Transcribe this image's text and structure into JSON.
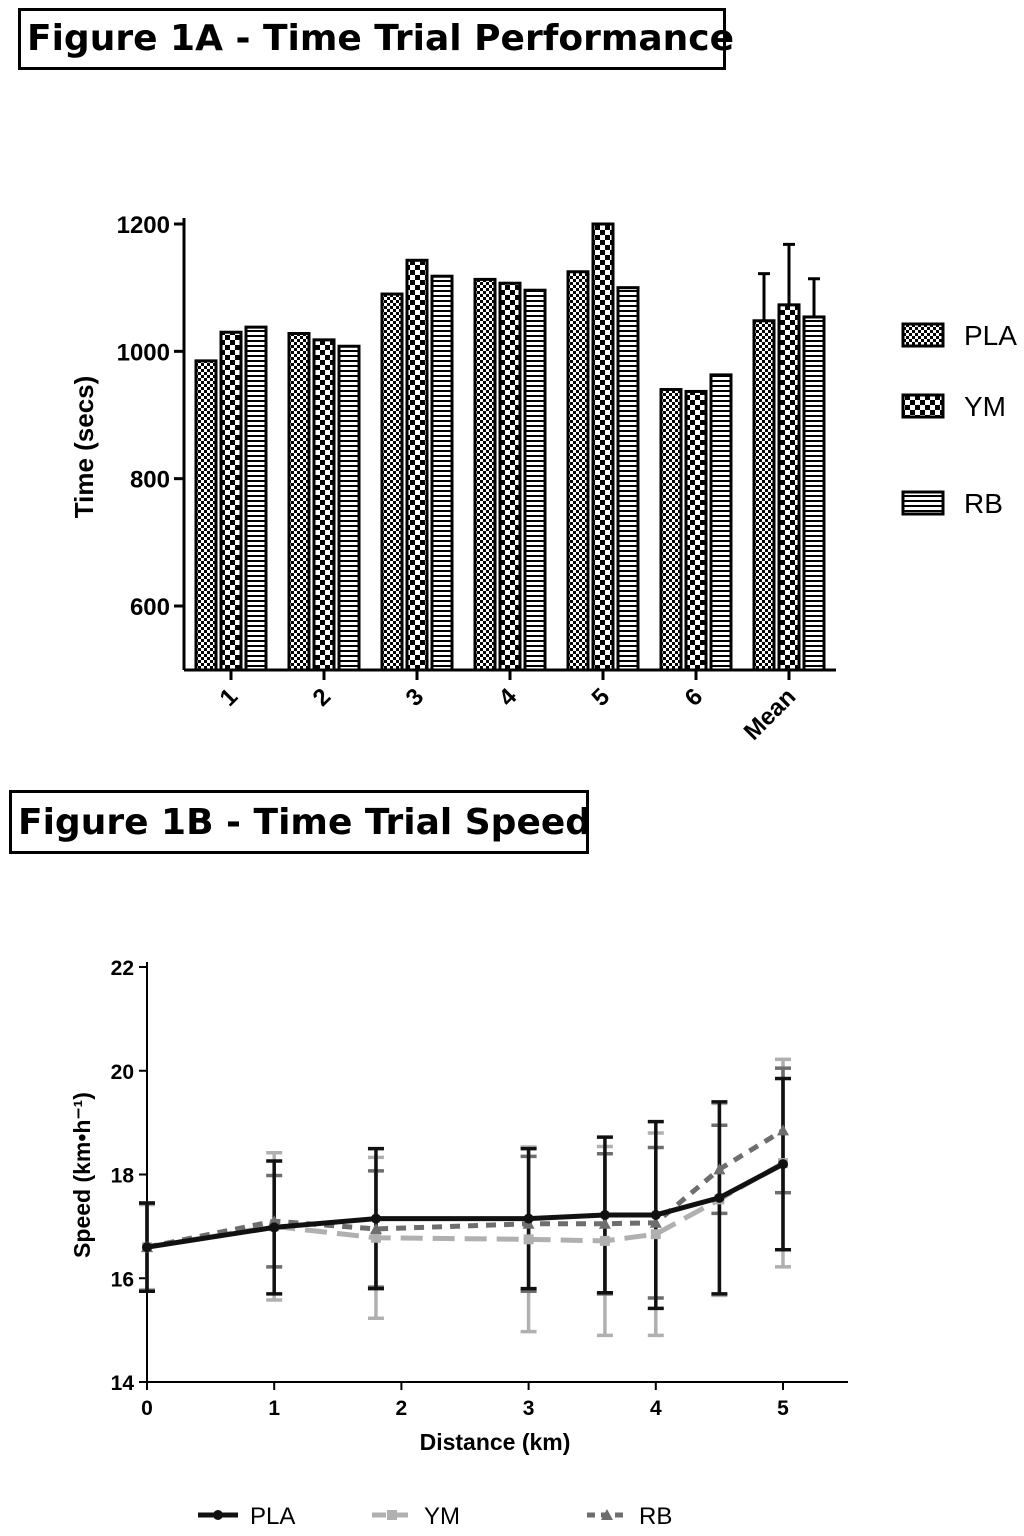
{
  "figure_a": {
    "title": "Figure 1A - Time Trial Performance"
  },
  "figure_b": {
    "title": "Figure 1B - Time Trial Speed"
  },
  "chart_data": [
    {
      "type": "bar",
      "title": "Figure 1A - Time Trial Performance",
      "xlabel": "",
      "ylabel": "Time (secs)",
      "ylim": [
        500,
        1200
      ],
      "yticks": [
        600,
        800,
        1000,
        1200
      ],
      "categories": [
        "1",
        "2",
        "3",
        "4",
        "5",
        "6",
        "Mean"
      ],
      "series": [
        {
          "name": "PLA",
          "values": [
            985,
            1028,
            1090,
            1113,
            1125,
            940,
            1048
          ],
          "error": [
            null,
            null,
            null,
            null,
            null,
            null,
            74
          ],
          "pattern": "checker-fine"
        },
        {
          "name": "YM",
          "values": [
            1030,
            1018,
            1143,
            1107,
            1200,
            937,
            1073
          ],
          "error": [
            null,
            null,
            null,
            null,
            null,
            null,
            95
          ],
          "pattern": "checker-coarse"
        },
        {
          "name": "RB",
          "values": [
            1038,
            1008,
            1118,
            1096,
            1100,
            963,
            1054
          ],
          "error": [
            null,
            null,
            null,
            null,
            null,
            null,
            60
          ],
          "pattern": "horizontal-lines"
        }
      ],
      "legend_position": "right"
    },
    {
      "type": "line",
      "title": "Figure 1B - Time Trial Speed",
      "xlabel": "Distance (km)",
      "ylabel": "Speed (km•h⁻¹)",
      "xlim": [
        0,
        5.5
      ],
      "ylim": [
        14,
        22
      ],
      "xticks": [
        0,
        1,
        2,
        3,
        4,
        5
      ],
      "yticks": [
        14,
        16,
        18,
        20,
        22
      ],
      "x": [
        0,
        1,
        1.8,
        3,
        3.6,
        4,
        4.5,
        5
      ],
      "series": [
        {
          "name": "PLA",
          "values": [
            16.6,
            16.98,
            17.15,
            17.15,
            17.22,
            17.22,
            17.55,
            18.2
          ],
          "error": [
            0.85,
            1.28,
            1.35,
            1.35,
            1.5,
            1.8,
            1.85,
            1.65
          ],
          "color": "#111111",
          "dash": "solid",
          "marker": "circle"
        },
        {
          "name": "YM",
          "values": [
            16.6,
            17.0,
            16.78,
            16.75,
            16.72,
            16.85,
            17.52,
            18.22
          ],
          "error": [
            0.82,
            1.42,
            1.55,
            1.78,
            1.82,
            1.95,
            1.85,
            2.0
          ],
          "color": "#b0b0b0",
          "dash": "long-dash",
          "marker": "square"
        },
        {
          "name": "RB",
          "values": [
            16.6,
            17.1,
            16.95,
            17.05,
            17.05,
            17.07,
            18.1,
            18.85
          ],
          "error": [
            0.85,
            0.88,
            1.12,
            1.3,
            1.35,
            1.45,
            0.85,
            1.2
          ],
          "color": "#6e6e6e",
          "dash": "short-dash",
          "marker": "triangle"
        }
      ],
      "legend_position": "bottom"
    }
  ]
}
